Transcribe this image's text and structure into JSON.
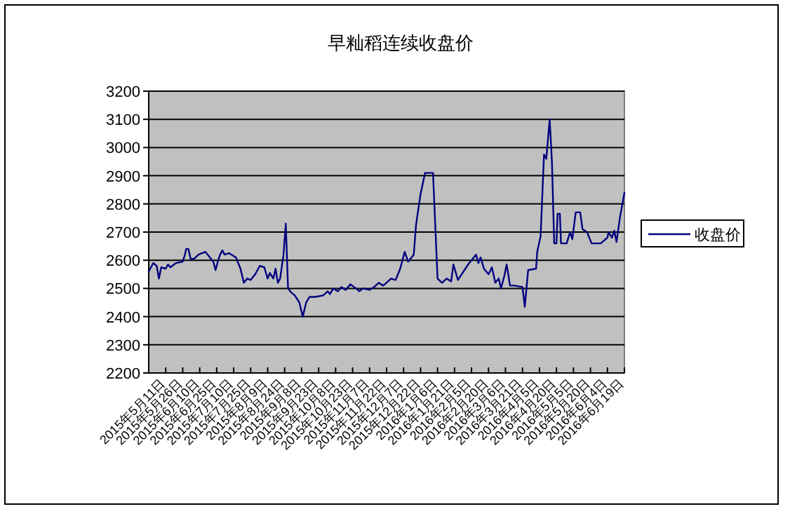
{
  "chart_data": {
    "type": "line",
    "title": "早籼稻连续收盘价",
    "x": [
      "2015-04-26",
      "2015-04-30",
      "2015-05-03",
      "2015-05-05",
      "2015-05-07",
      "2015-05-11",
      "2015-05-13",
      "2015-05-15",
      "2015-05-20",
      "2015-05-26",
      "2015-05-28",
      "2015-05-29",
      "2015-05-31",
      "2015-06-02",
      "2015-06-05",
      "2015-06-09",
      "2015-06-15",
      "2015-06-19",
      "2015-06-22",
      "2015-06-24",
      "2015-06-26",
      "2015-06-28",
      "2015-06-30",
      "2015-07-02",
      "2015-07-06",
      "2015-07-12",
      "2015-07-16",
      "2015-07-19",
      "2015-07-22",
      "2015-07-25",
      "2015-07-29",
      "2015-08-02",
      "2015-08-06",
      "2015-08-09",
      "2015-08-11",
      "2015-08-14",
      "2015-08-16",
      "2015-08-18",
      "2015-08-20",
      "2015-08-23",
      "2015-08-25",
      "2015-08-27",
      "2015-08-30",
      "2015-09-02",
      "2015-09-06",
      "2015-09-09",
      "2015-09-12",
      "2015-09-15",
      "2015-09-20",
      "2015-09-27",
      "2015-10-01",
      "2015-10-03",
      "2015-10-06",
      "2015-10-10",
      "2015-10-13",
      "2015-10-17",
      "2015-10-21",
      "2015-10-26",
      "2015-10-29",
      "2015-11-01",
      "2015-11-07",
      "2015-11-11",
      "2015-11-15",
      "2015-11-19",
      "2015-11-26",
      "2015-11-30",
      "2015-12-04",
      "2015-12-08",
      "2015-12-11",
      "2015-12-16",
      "2015-12-18",
      "2015-12-22",
      "2015-12-26",
      "2016-01-02",
      "2016-01-06",
      "2016-01-10",
      "2016-01-14",
      "2016-01-18",
      "2016-01-20",
      "2016-01-24",
      "2016-02-02",
      "2016-02-09",
      "2016-02-11",
      "2016-02-13",
      "2016-02-16",
      "2016-02-20",
      "2016-02-23",
      "2016-02-26",
      "2016-02-29",
      "2016-03-02",
      "2016-03-05",
      "2016-03-07",
      "2016-03-10",
      "2016-03-14",
      "2016-03-21",
      "2016-03-23",
      "2016-03-26",
      "2016-04-02",
      "2016-04-03",
      "2016-04-06",
      "2016-04-09",
      "2016-04-11",
      "2016-04-14",
      "2016-04-16",
      "2016-04-18",
      "2016-04-20",
      "2016-04-21",
      "2016-04-23",
      "2016-04-24",
      "2016-04-29",
      "2016-05-02",
      "2016-05-04",
      "2016-05-07",
      "2016-05-11",
      "2016-05-13",
      "2016-05-17",
      "2016-05-21",
      "2016-05-29",
      "2016-06-04",
      "2016-06-05",
      "2016-06-08",
      "2016-06-10",
      "2016-06-12",
      "2016-06-15",
      "2016-06-19"
    ],
    "series": [
      {
        "name": "收盘价",
        "color": "#000080",
        "values": [
          2560,
          2590,
          2580,
          2535,
          2575,
          2570,
          2585,
          2575,
          2590,
          2595,
          2620,
          2640,
          2640,
          2605,
          2605,
          2620,
          2630,
          2610,
          2595,
          2565,
          2595,
          2620,
          2635,
          2620,
          2625,
          2610,
          2570,
          2520,
          2535,
          2530,
          2550,
          2580,
          2575,
          2535,
          2555,
          2535,
          2570,
          2520,
          2535,
          2620,
          2730,
          2500,
          2485,
          2475,
          2450,
          2400,
          2450,
          2470,
          2470,
          2475,
          2490,
          2480,
          2500,
          2490,
          2505,
          2495,
          2515,
          2500,
          2490,
          2500,
          2495,
          2505,
          2520,
          2510,
          2535,
          2530,
          2570,
          2630,
          2595,
          2620,
          2725,
          2835,
          2910,
          2910,
          2535,
          2520,
          2535,
          2525,
          2585,
          2530,
          2585,
          2620,
          2590,
          2610,
          2570,
          2550,
          2575,
          2520,
          2535,
          2500,
          2545,
          2585,
          2510,
          2510,
          2505,
          2435,
          2565,
          2570,
          2630,
          2685,
          2975,
          2960,
          3100,
          2950,
          2660,
          2660,
          2765,
          2765,
          2660,
          2660,
          2700,
          2675,
          2770,
          2770,
          2710,
          2700,
          2660,
          2660,
          2680,
          2700,
          2680,
          2705,
          2665,
          2750,
          2840
        ]
      }
    ],
    "xlim": [
      "2015-04-26",
      "2016-06-19"
    ],
    "xticks": [
      {
        "value": "2015-05-11",
        "label": "2015年5月11日"
      },
      {
        "value": "2015-05-26",
        "label": "2015年5月26日"
      },
      {
        "value": "2015-06-10",
        "label": "2015年6月10日"
      },
      {
        "value": "2015-06-25",
        "label": "2015年6月25日"
      },
      {
        "value": "2015-07-10",
        "label": "2015年7月10日"
      },
      {
        "value": "2015-07-25",
        "label": "2015年7月25日"
      },
      {
        "value": "2015-08-09",
        "label": "2015年8月9日"
      },
      {
        "value": "2015-08-24",
        "label": "2015年8月24日"
      },
      {
        "value": "2015-09-08",
        "label": "2015年9月8日"
      },
      {
        "value": "2015-09-23",
        "label": "2015年9月23日"
      },
      {
        "value": "2015-10-08",
        "label": "2015年10月8日"
      },
      {
        "value": "2015-10-23",
        "label": "2015年10月23日"
      },
      {
        "value": "2015-11-07",
        "label": "2015年11月7日"
      },
      {
        "value": "2015-11-22",
        "label": "2015年11月22日"
      },
      {
        "value": "2015-12-07",
        "label": "2015年12月7日"
      },
      {
        "value": "2015-12-22",
        "label": "2015年12月22日"
      },
      {
        "value": "2016-01-06",
        "label": "2016年1月6日"
      },
      {
        "value": "2016-01-21",
        "label": "2016年1月21日"
      },
      {
        "value": "2016-02-05",
        "label": "2016年2月5日"
      },
      {
        "value": "2016-02-20",
        "label": "2016年2月20日"
      },
      {
        "value": "2016-03-06",
        "label": "2016年3月6日"
      },
      {
        "value": "2016-03-21",
        "label": "2016年3月21日"
      },
      {
        "value": "2016-04-05",
        "label": "2016年4月5日"
      },
      {
        "value": "2016-04-20",
        "label": "2016年4月20日"
      },
      {
        "value": "2016-05-05",
        "label": "2016年5月5日"
      },
      {
        "value": "2016-05-20",
        "label": "2016年5月20日"
      },
      {
        "value": "2016-06-04",
        "label": "2016年6月4日"
      },
      {
        "value": "2016-06-19",
        "label": "2016年6月19日"
      }
    ],
    "ylim": [
      2200,
      3200
    ],
    "yticks": [
      2200,
      2300,
      2400,
      2500,
      2600,
      2700,
      2800,
      2900,
      3000,
      3100,
      3200
    ],
    "grid": "y",
    "legend": "right"
  }
}
